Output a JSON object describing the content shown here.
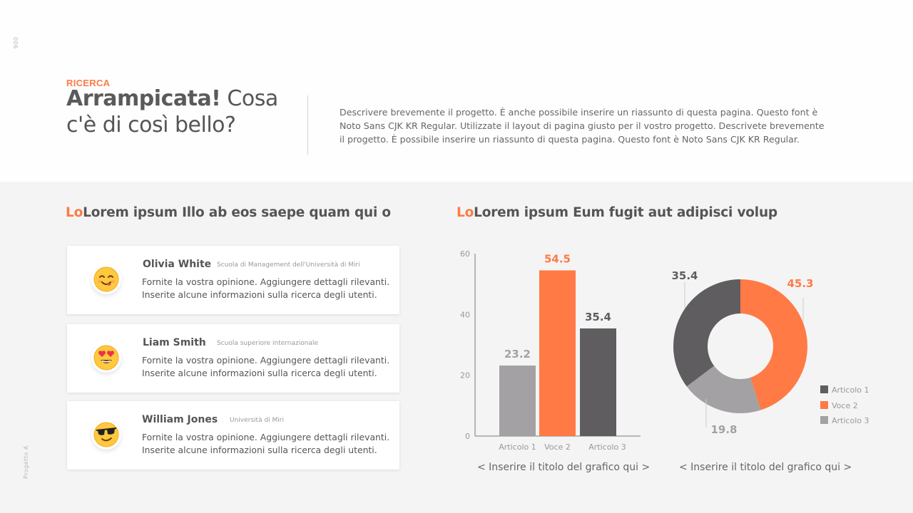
{
  "side": {
    "code": "006",
    "project": "Progetto A"
  },
  "header": {
    "eyebrow": "RICERCA",
    "title_bold": "Arrampicata!",
    "title_rest": " Cosa c'è di così bello?",
    "description": "Descrivere brevemente il progetto. È anche possibile inserire un riassunto di questa pagina. Questo font è Noto Sans CJK KR Regular. Utilizzate il layout di pagina giusto per il vostro progetto. Descrivete brevemente il progetto. È possibile inserire un riassunto di questa pagina. Questo font è Noto Sans CJK KR Regular."
  },
  "left_section": {
    "title_accent": "Lo",
    "title_rest": "Lorem ipsum Illo ab eos saepe quam qui o",
    "cards": [
      {
        "name": "Olivia White",
        "school": "Scuola di Management dell'Università di Miri",
        "text": "Fornite la vostra opinione. Aggiungere dettagli rilevanti. Inserite alcune informazioni sulla ricerca degli utenti.",
        "icon": "smiling-face-icon"
      },
      {
        "name": "Liam Smith",
        "school": "Scuola superiore internazionale",
        "text": "Fornite la vostra opinione. Aggiungere dettagli rilevanti. Inserite alcune informazioni sulla ricerca degli utenti.",
        "icon": "heart-eyes-face-icon"
      },
      {
        "name": "William Jones",
        "school": "Università di Miri",
        "text": "Fornite la vostra opinione. Aggiungere dettagli rilevanti. Inserite alcune informazioni sulla ricerca degli utenti.",
        "icon": "sunglasses-face-icon"
      }
    ]
  },
  "right_section": {
    "title_accent": "Lo",
    "title_rest": "Lorem ipsum Eum fugit aut adipisci volup"
  },
  "colors": {
    "accent": "#ff7a45",
    "dark": "#5f5d60",
    "light": "#a3a1a3"
  },
  "chart_data": [
    {
      "type": "bar",
      "categories": [
        "Articolo 1",
        "Voce 2",
        "Articolo 3"
      ],
      "values": [
        23.2,
        54.5,
        35.4
      ],
      "value_labels": [
        "23.2",
        "54.5",
        "35.4"
      ],
      "colors": [
        "#a3a1a3",
        "#ff7a45",
        "#5f5d60"
      ],
      "label_colors": [
        "#a3a1a3",
        "#ff7a45",
        "#5f5d60"
      ],
      "yticks": [
        "0",
        "20",
        "40",
        "60"
      ],
      "ylim": [
        0,
        60
      ],
      "grid": false,
      "caption": "< Inserire il titolo del grafico qui >"
    },
    {
      "type": "pie",
      "donut": true,
      "labels": [
        "Articolo 1",
        "Voce 2",
        "Articolo 3"
      ],
      "values": [
        35.4,
        45.3,
        19.8
      ],
      "value_labels": [
        "35.4",
        "45.3",
        "19.8"
      ],
      "colors": [
        "#5f5d60",
        "#ff7a45",
        "#a3a1a3"
      ],
      "legend": [
        "Articolo 1",
        "Voce 2",
        "Articolo 3"
      ],
      "legend_position": "right",
      "caption": "< Inserire il titolo del grafico qui >"
    }
  ]
}
